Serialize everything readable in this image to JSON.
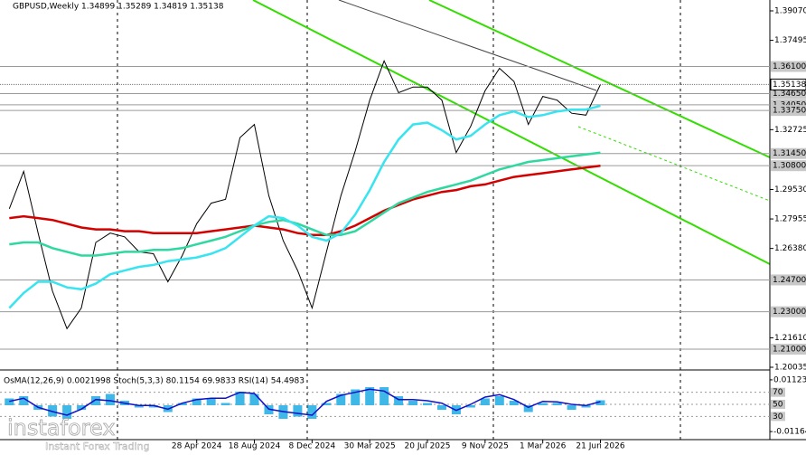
{
  "chart_data": [
    {
      "type": "line",
      "title": "GBPUSD,Weekly  1.34899 1.35289 1.34819 1.35138",
      "x": [
        "2023-04-30",
        "2023-05-28",
        "2023-06-25",
        "2023-07-23",
        "2023-08-20",
        "2023-09-17",
        "2023-10-15",
        "2023-11-12",
        "2023-12-10",
        "2024-01-07",
        "2024-02-04",
        "2024-03-03",
        "2024-03-31",
        "2024-04-28",
        "2024-05-26",
        "2024-06-23",
        "2024-07-21",
        "2024-08-18",
        "2024-09-15",
        "2024-10-13",
        "2024-11-10",
        "2024-12-08",
        "2025-01-05",
        "2025-02-02",
        "2025-03-02",
        "2025-03-30",
        "2025-04-27",
        "2025-05-25",
        "2025-06-22",
        "2025-07-20",
        "2025-08-17",
        "2025-09-14",
        "2025-10-12",
        "2025-11-09",
        "2025-12-07",
        "2026-01-04",
        "2026-02-01",
        "2026-03-01",
        "2026-03-29",
        "2026-04-26",
        "2026-05-24",
        "2026-06-21"
      ],
      "series": [
        {
          "color": "#000000",
          "values": [
            1.285,
            1.305,
            1.272,
            1.241,
            1.221,
            1.232,
            1.267,
            1.272,
            1.27,
            1.262,
            1.261,
            1.246,
            1.26,
            1.277,
            1.288,
            1.29,
            1.323,
            1.33,
            1.292,
            1.268,
            1.252,
            1.232,
            1.262,
            1.292,
            1.316,
            1.343,
            1.364,
            1.347,
            1.35,
            1.35,
            1.343,
            1.315,
            1.329,
            1.348,
            1.36,
            1.353,
            1.33,
            1.345,
            1.343,
            1.336,
            1.335,
            1.35138
          ]
        },
        {
          "color": "#d40000",
          "values": [
            1.28,
            1.281,
            1.28,
            1.279,
            1.277,
            1.275,
            1.274,
            1.274,
            1.273,
            1.273,
            1.272,
            1.272,
            1.272,
            1.272,
            1.273,
            1.274,
            1.275,
            1.276,
            1.275,
            1.274,
            1.272,
            1.271,
            1.271,
            1.273,
            1.276,
            1.28,
            1.284,
            1.287,
            1.29,
            1.292,
            1.294,
            1.295,
            1.297,
            1.298,
            1.3,
            1.302,
            1.303,
            1.304,
            1.305,
            1.306,
            1.307,
            1.308
          ]
        },
        {
          "color": "#2ed8a0",
          "values": [
            1.266,
            1.267,
            1.267,
            1.264,
            1.262,
            1.26,
            1.26,
            1.261,
            1.262,
            1.262,
            1.263,
            1.263,
            1.264,
            1.266,
            1.268,
            1.27,
            1.273,
            1.276,
            1.278,
            1.279,
            1.277,
            1.274,
            1.271,
            1.271,
            1.273,
            1.278,
            1.283,
            1.288,
            1.291,
            1.294,
            1.296,
            1.298,
            1.3,
            1.303,
            1.306,
            1.308,
            1.31,
            1.311,
            1.312,
            1.313,
            1.314,
            1.315
          ]
        },
        {
          "color": "#38e4f0",
          "values": [
            1.232,
            1.24,
            1.246,
            1.246,
            1.243,
            1.242,
            1.245,
            1.25,
            1.252,
            1.254,
            1.255,
            1.257,
            1.258,
            1.259,
            1.261,
            1.264,
            1.27,
            1.276,
            1.281,
            1.28,
            1.276,
            1.27,
            1.268,
            1.272,
            1.282,
            1.295,
            1.31,
            1.322,
            1.33,
            1.331,
            1.327,
            1.322,
            1.324,
            1.33,
            1.335,
            1.337,
            1.334,
            1.335,
            1.337,
            1.338,
            1.338,
            1.34
          ]
        }
      ],
      "xlim": [
        "2023-04-12",
        "2027-05-16"
      ],
      "xticks": [
        {
          "value": "2024-04-28",
          "label": "28 Apr 2024"
        },
        {
          "value": "2024-08-18",
          "label": "18 Aug 2024"
        },
        {
          "value": "2024-12-08",
          "label": "8 Dec 2024"
        },
        {
          "value": "2025-03-30",
          "label": "30 Mar 2025"
        },
        {
          "value": "2025-07-20",
          "label": "20 Jul 2025"
        },
        {
          "value": "2025-11-09",
          "label": "9 Nov 2025"
        },
        {
          "value": "2026-03-01",
          "label": "1 Mar 2026"
        },
        {
          "value": "2026-06-21",
          "label": "21 Jun 2026"
        }
      ],
      "ylim": [
        1.20035,
        1.3907
      ],
      "yticks": [
        {
          "value": 1.3907,
          "label": "1.39070"
        },
        1.37495,
        1.32725,
        {
          "value": 1.2953,
          "label": "1.29530"
        },
        1.27955,
        {
          "value": 1.2638,
          "label": "1.26380"
        },
        {
          "value": 1.2161,
          "label": "1.21610"
        },
        1.20035
      ],
      "levels": [
        {
          "value": 1.361,
          "label": "1.36100"
        },
        {
          "value": 1.3465,
          "label": "1.34650"
        },
        {
          "value": 1.3405,
          "label": "1.34050"
        },
        {
          "value": 1.3375,
          "label": "1.33750"
        },
        {
          "value": 1.3145,
          "label": "1.31450"
        },
        {
          "value": 1.308,
          "label": "1.30800"
        },
        {
          "value": 1.247,
          "label": "1.24700"
        },
        {
          "value": 1.23,
          "label": "1.23000"
        },
        {
          "value": 1.21,
          "label": "1.21000"
        }
      ],
      "last_price": 1.35138
    },
    {
      "type": "oscillator",
      "title": "OsMA(12,26,9) 0.0021998  Stoch(5,3,3) 80.1154 69.9833  RSI(14) 54.4983",
      "x": [
        "2023-04-30",
        "2023-05-28",
        "2023-06-25",
        "2023-07-23",
        "2023-08-20",
        "2023-09-17",
        "2023-10-15",
        "2023-11-12",
        "2023-12-10",
        "2024-01-07",
        "2024-02-04",
        "2024-03-03",
        "2024-03-31",
        "2024-04-28",
        "2024-05-26",
        "2024-06-23",
        "2024-07-21",
        "2024-08-18",
        "2024-09-15",
        "2024-10-13",
        "2024-11-10",
        "2024-12-08",
        "2025-01-05",
        "2025-02-02",
        "2025-03-02",
        "2025-03-30",
        "2025-04-27",
        "2025-05-25",
        "2025-06-22",
        "2025-07-20",
        "2025-08-17",
        "2025-09-14",
        "2025-10-12",
        "2025-11-09",
        "2025-12-07",
        "2026-01-04",
        "2026-02-01",
        "2026-03-01",
        "2026-03-29",
        "2026-04-26",
        "2026-05-24",
        "2026-06-21"
      ],
      "series": [
        {
          "type": "bar",
          "axis": "y2",
          "color": "#3fb8e8",
          "values": [
            0.003,
            0.004,
            -0.002,
            -0.005,
            -0.006,
            -0.002,
            0.004,
            0.005,
            0.002,
            -0.001,
            -0.001,
            -0.003,
            0.001,
            0.003,
            0.003,
            0.001,
            0.006,
            0.005,
            -0.004,
            -0.006,
            -0.005,
            -0.006,
            0.001,
            0.005,
            0.007,
            0.008,
            0.008,
            0.004,
            0.002,
            0.001,
            -0.002,
            -0.004,
            -0.001,
            0.003,
            0.004,
            0.002,
            -0.003,
            0.001,
            0.001,
            -0.002,
            -0.001,
            0.0021998
          ]
        },
        {
          "type": "line",
          "color": "#1010c8",
          "values": [
            55,
            60,
            45,
            38,
            32,
            42,
            58,
            56,
            52,
            48,
            48,
            42,
            52,
            58,
            60,
            60,
            70,
            68,
            42,
            38,
            35,
            32,
            55,
            65,
            70,
            75,
            72,
            58,
            58,
            56,
            52,
            40,
            50,
            62,
            66,
            58,
            45,
            55,
            54,
            50,
            48,
            54.4983
          ]
        }
      ],
      "ylim": [
        -7,
        104
      ],
      "yticks": [
        70,
        50,
        30
      ],
      "y2lim": [
        -0.0148,
        0.0148
      ],
      "y2ticks": [
        0.011234,
        -0.011642
      ]
    }
  ],
  "watermark": {
    "brand": "instaforex",
    "tagline": "Instant Forex Trading"
  }
}
